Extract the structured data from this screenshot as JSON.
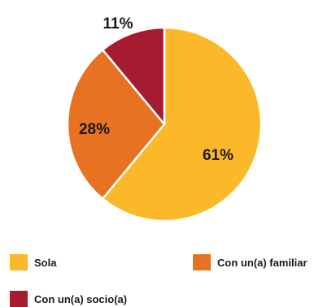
{
  "chart_data": {
    "type": "pie",
    "categories": [
      "Sola",
      "Con un(a) familiar",
      "Con un(a) socio(a)"
    ],
    "values": [
      61,
      28,
      11
    ],
    "value_labels": [
      "61%",
      "28%",
      "11%"
    ],
    "colors": [
      "#fbb829",
      "#e67222",
      "#a51c30"
    ],
    "start_angle_deg": 0,
    "direction": "clockwise",
    "legend_position": "bottom"
  }
}
